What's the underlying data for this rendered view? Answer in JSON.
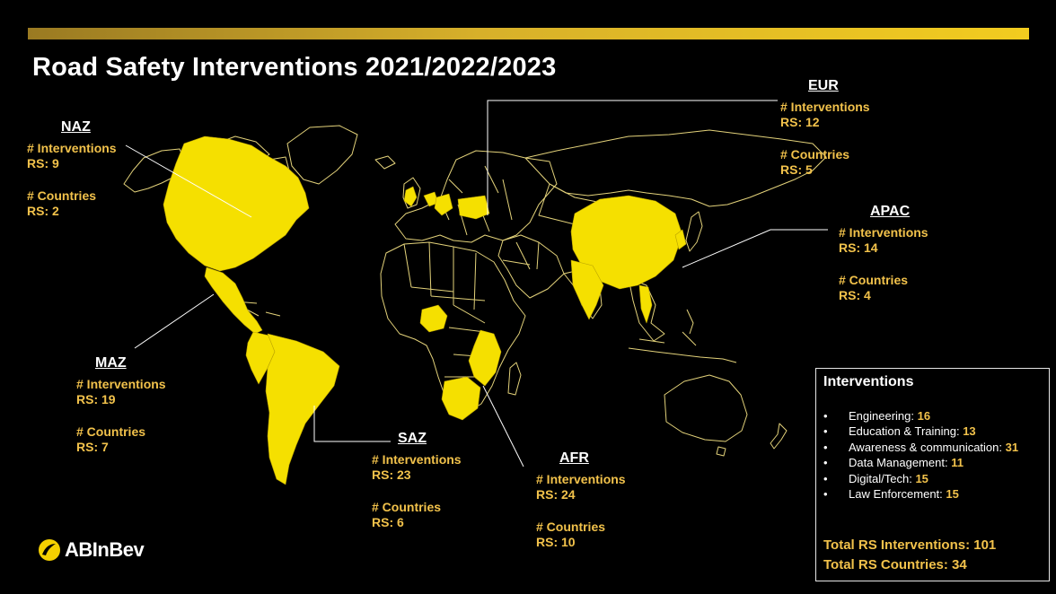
{
  "title": "Road Safety Interventions 2021/2022/2023",
  "colors": {
    "accent": "#f2c24b",
    "highlight": "#f5e000",
    "outline": "#e3d27a",
    "background": "#000000"
  },
  "regions": {
    "naz": {
      "name": "NAZ",
      "interventions_label": "# Interventions",
      "interventions_value": "RS: 9",
      "countries_label": "# Countries",
      "countries_value": "RS: 2"
    },
    "maz": {
      "name": "MAZ",
      "interventions_label": "# Interventions",
      "interventions_value": "RS: 19",
      "countries_label": "# Countries",
      "countries_value": "RS: 7"
    },
    "saz": {
      "name": "SAZ",
      "interventions_label": "# Interventions",
      "interventions_value": "RS: 23",
      "countries_label": "# Countries",
      "countries_value": "RS: 6"
    },
    "afr": {
      "name": "AFR",
      "interventions_label": "# Interventions",
      "interventions_value": "RS: 24",
      "countries_label": "# Countries",
      "countries_value": "RS: 10"
    },
    "eur": {
      "name": "EUR",
      "interventions_label": "# Interventions",
      "interventions_value": "RS: 12",
      "countries_label": "# Countries",
      "countries_value": "RS: 5"
    },
    "apac": {
      "name": "APAC",
      "interventions_label": "# Interventions",
      "interventions_value": "RS: 14",
      "countries_label": "# Countries",
      "countries_value": "RS: 4"
    }
  },
  "interventions_panel": {
    "title": "Interventions",
    "items": [
      {
        "label": "Engineering:",
        "value": "16"
      },
      {
        "label": "Education & Training:",
        "value": "13"
      },
      {
        "label": "Awareness & communication:",
        "value": "31"
      },
      {
        "label": "Data Management:",
        "value": "11"
      },
      {
        "label": "Digital/Tech:",
        "value": "15"
      },
      {
        "label": "Law Enforcement:",
        "value": "15"
      }
    ],
    "total_interventions": "Total RS Interventions: 101",
    "total_countries": "Total RS Countries: 34"
  },
  "logo": {
    "text": "ABInBev",
    "icon": "abinbev-logo-icon"
  }
}
